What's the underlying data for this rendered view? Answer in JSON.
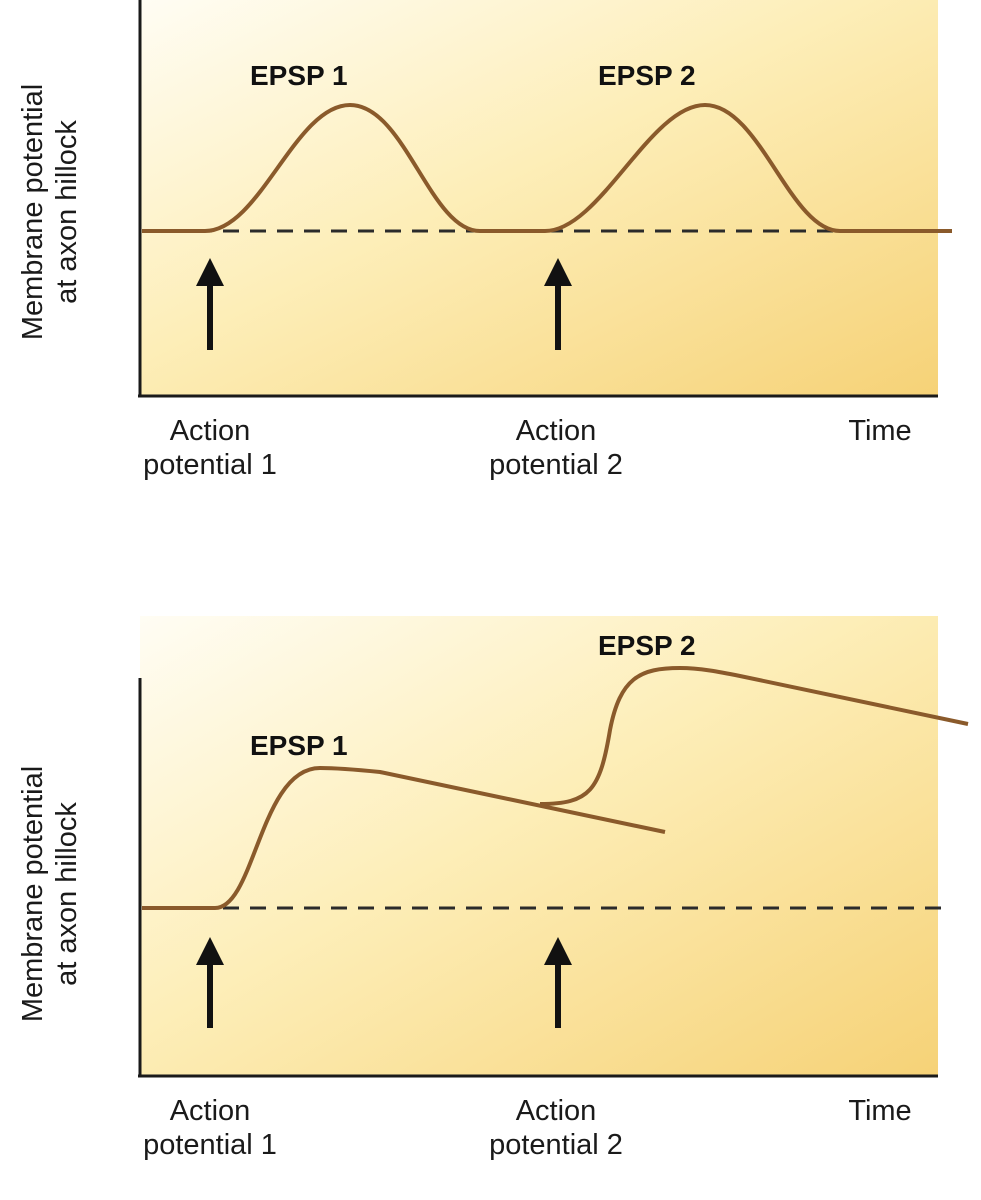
{
  "colors": {
    "curve": "#8a5a2b",
    "baseline": "#2b2b2b",
    "axis": "#1a1a1a",
    "panel_light": "#fffdf2",
    "panel_dark": "#f5cf6a"
  },
  "panels": [
    {
      "y_axis_label_line1": "Membrane potential",
      "y_axis_label_line2": "at axon hillock",
      "time_label": "Time",
      "stimulus_1_line1": "Action",
      "stimulus_1_line2": "potential 1",
      "stimulus_2_line1": "Action",
      "stimulus_2_line2": "potential 2",
      "epsp_1_label": "EPSP 1",
      "epsp_2_label": "EPSP 2",
      "arrow_icon": "up-arrow-icon"
    },
    {
      "y_axis_label_line1": "Membrane potential",
      "y_axis_label_line2": "at axon hillock",
      "time_label": "Time",
      "stimulus_1_line1": "Action",
      "stimulus_1_line2": "potential 1",
      "stimulus_2_line1": "Action",
      "stimulus_2_line2": "potential 2",
      "epsp_1_label": "EPSP 1",
      "epsp_2_label": "EPSP 2",
      "arrow_icon": "up-arrow-icon"
    }
  ]
}
